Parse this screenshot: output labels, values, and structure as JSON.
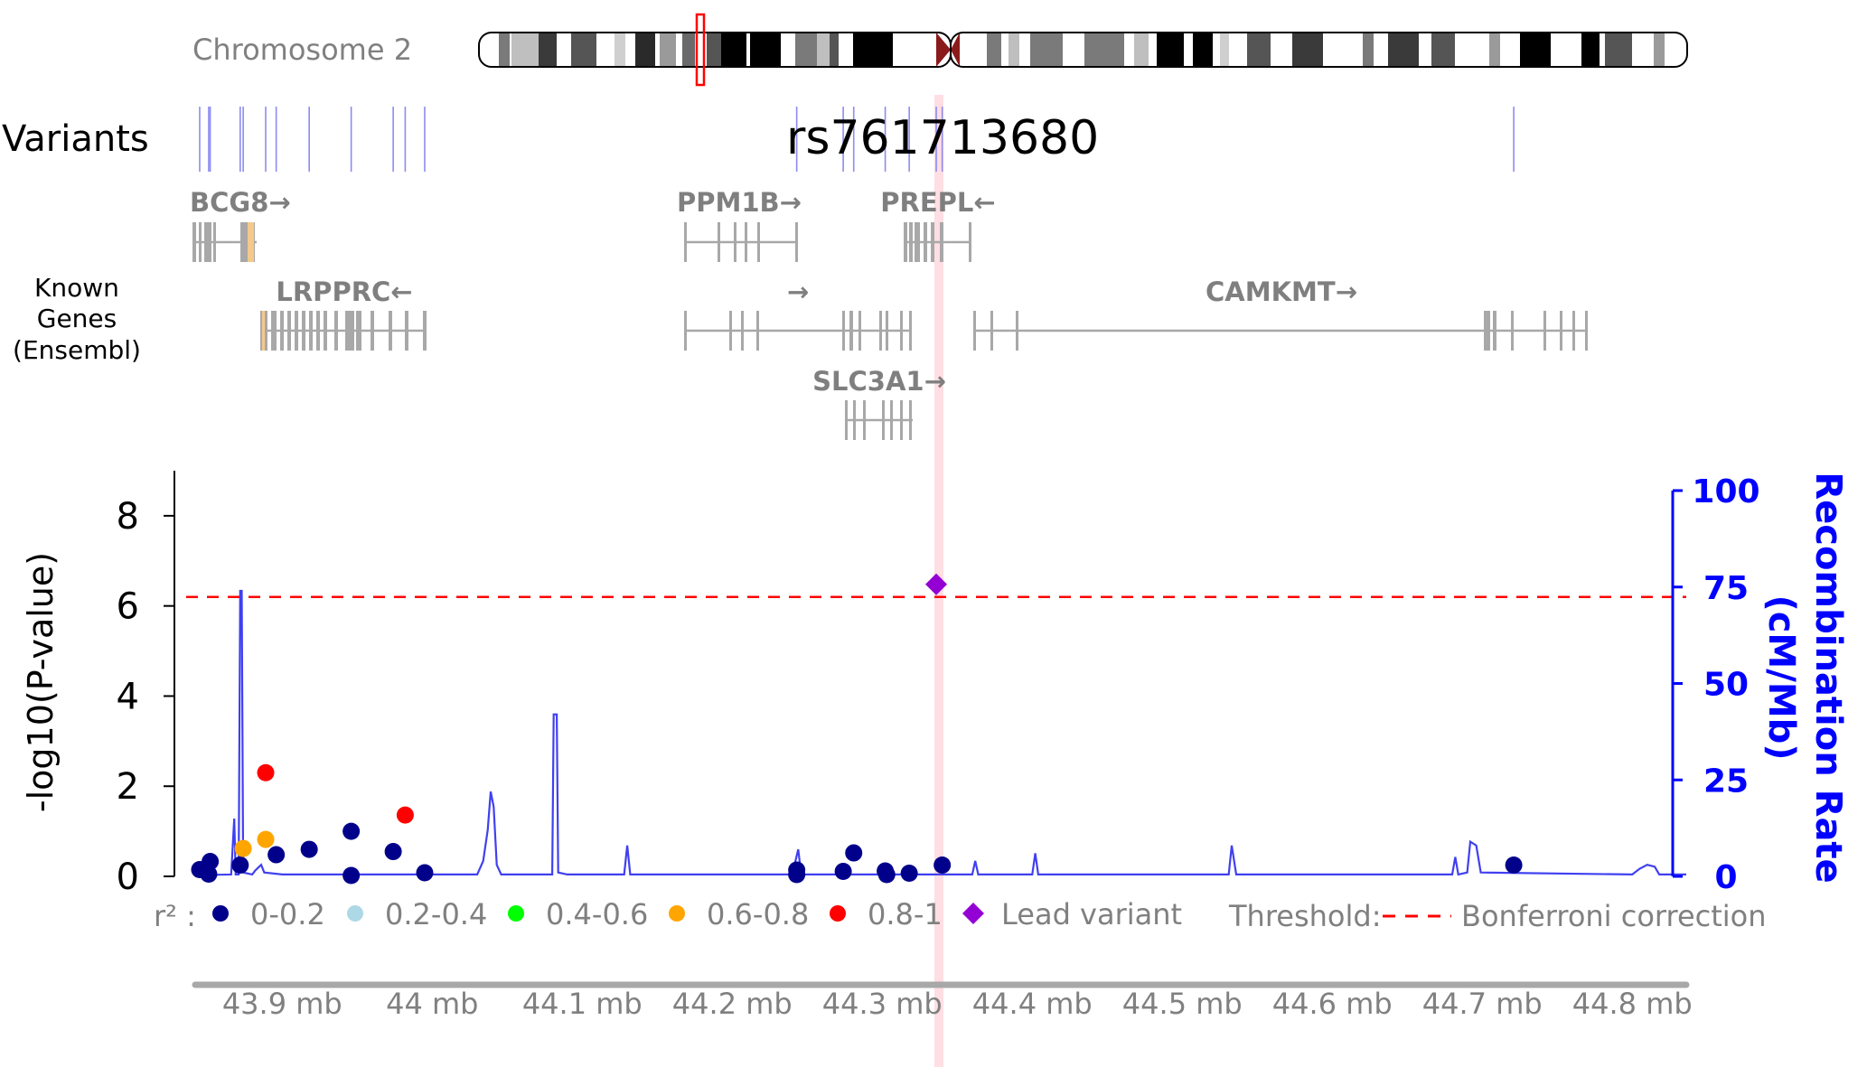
{
  "header": {
    "chromosome_label": "Chromosome 2",
    "variants_label": "Variants",
    "lead_variant_id": "rs761713680",
    "genes_label_lines": [
      "Known",
      "Genes",
      "(Ensembl)"
    ]
  },
  "genes": [
    {
      "label": "BCG8→"
    },
    {
      "label": "PPM1B→"
    },
    {
      "label": "PREPL←"
    },
    {
      "label": "LRPPRC←"
    },
    {
      "label": "→"
    },
    {
      "label": "CAMKMT→"
    },
    {
      "label": "SLC3A1→"
    }
  ],
  "chart_data": {
    "type": "scatter",
    "xlabel": "",
    "ylabel": "-log10(P-value)",
    "y2label_lines": [
      "Recombination Rate",
      "(cM/Mb)"
    ],
    "xlim": [
      43.842,
      44.836
    ],
    "ylim": [
      0,
      9
    ],
    "y2lim": [
      0,
      100
    ],
    "yticks": [
      0,
      2,
      4,
      6,
      8
    ],
    "y2ticks": [
      0,
      25,
      50,
      75,
      100
    ],
    "xticks": [
      {
        "value": 43.9,
        "label": "43.9 mb"
      },
      {
        "value": 44.0,
        "label": "44 mb"
      },
      {
        "value": 44.1,
        "label": "44.1 mb"
      },
      {
        "value": 44.2,
        "label": "44.2 mb"
      },
      {
        "value": 44.3,
        "label": "44.3 mb"
      },
      {
        "value": 44.4,
        "label": "44.4 mb"
      },
      {
        "value": 44.5,
        "label": "44.5 mb"
      },
      {
        "value": 44.6,
        "label": "44.6 mb"
      },
      {
        "value": 44.7,
        "label": "44.7 mb"
      },
      {
        "value": 44.8,
        "label": "44.8 mb"
      }
    ],
    "threshold": 6.2,
    "lead_variant": {
      "x": 44.336,
      "y": 6.48
    },
    "points": [
      {
        "x": 43.845,
        "y": 0.15,
        "ld": "0-0.2"
      },
      {
        "x": 43.851,
        "y": 0.05,
        "ld": "0-0.2"
      },
      {
        "x": 43.852,
        "y": 0.33,
        "ld": "0-0.2"
      },
      {
        "x": 43.872,
        "y": 0.25,
        "ld": "0-0.2"
      },
      {
        "x": 43.874,
        "y": 0.62,
        "ld": "0.6-0.8"
      },
      {
        "x": 43.889,
        "y": 0.82,
        "ld": "0.6-0.8"
      },
      {
        "x": 43.889,
        "y": 2.3,
        "ld": "0.8-1"
      },
      {
        "x": 43.896,
        "y": 0.48,
        "ld": "0-0.2"
      },
      {
        "x": 43.918,
        "y": 0.6,
        "ld": "0-0.2"
      },
      {
        "x": 43.946,
        "y": 1.0,
        "ld": "0-0.2"
      },
      {
        "x": 43.946,
        "y": 0.02,
        "ld": "0-0.2"
      },
      {
        "x": 43.974,
        "y": 0.55,
        "ld": "0-0.2"
      },
      {
        "x": 43.982,
        "y": 1.36,
        "ld": "0.8-1"
      },
      {
        "x": 43.995,
        "y": 0.08,
        "ld": "0-0.2"
      },
      {
        "x": 44.243,
        "y": 0.14,
        "ld": "0-0.2"
      },
      {
        "x": 44.243,
        "y": 0.04,
        "ld": "0-0.2"
      },
      {
        "x": 44.274,
        "y": 0.11,
        "ld": "0-0.2"
      },
      {
        "x": 44.281,
        "y": 0.52,
        "ld": "0-0.2"
      },
      {
        "x": 44.302,
        "y": 0.12,
        "ld": "0-0.2"
      },
      {
        "x": 44.303,
        "y": 0.04,
        "ld": "0-0.2"
      },
      {
        "x": 44.318,
        "y": 0.07,
        "ld": "0-0.2"
      },
      {
        "x": 44.34,
        "y": 0.25,
        "ld": "0-0.2"
      },
      {
        "x": 44.721,
        "y": 0.25,
        "ld": "0-0.2"
      }
    ],
    "recombination": [
      [
        43.842,
        0.3
      ],
      [
        43.866,
        0.5
      ],
      [
        43.868,
        15
      ],
      [
        43.869,
        0.5
      ],
      [
        43.871,
        0.5
      ],
      [
        43.872,
        74
      ],
      [
        43.873,
        74
      ],
      [
        43.874,
        1
      ],
      [
        43.88,
        0.5
      ],
      [
        43.882,
        1.5
      ],
      [
        43.886,
        3
      ],
      [
        43.888,
        1
      ],
      [
        43.9,
        0.5
      ],
      [
        44.03,
        0.5
      ],
      [
        44.034,
        4
      ],
      [
        44.037,
        12
      ],
      [
        44.039,
        22
      ],
      [
        44.041,
        18
      ],
      [
        44.043,
        3
      ],
      [
        44.046,
        0.5
      ],
      [
        44.08,
        0.5
      ],
      [
        44.081,
        42
      ],
      [
        44.083,
        42
      ],
      [
        44.084,
        1
      ],
      [
        44.09,
        0.5
      ],
      [
        44.128,
        0.5
      ],
      [
        44.13,
        8
      ],
      [
        44.132,
        0.5
      ],
      [
        44.24,
        0.5
      ],
      [
        44.244,
        7
      ],
      [
        44.246,
        0.5
      ],
      [
        44.36,
        0.5
      ],
      [
        44.362,
        4
      ],
      [
        44.364,
        0.5
      ],
      [
        44.4,
        0.5
      ],
      [
        44.402,
        6
      ],
      [
        44.404,
        0.5
      ],
      [
        44.531,
        0.5
      ],
      [
        44.533,
        8
      ],
      [
        44.536,
        0.5
      ],
      [
        44.68,
        0.5
      ],
      [
        44.682,
        5
      ],
      [
        44.684,
        0.5
      ],
      [
        44.69,
        1
      ],
      [
        44.692,
        9
      ],
      [
        44.696,
        8
      ],
      [
        44.699,
        1
      ],
      [
        44.8,
        0.5
      ],
      [
        44.805,
        2
      ],
      [
        44.81,
        3
      ],
      [
        44.815,
        2.5
      ],
      [
        44.818,
        0.5
      ],
      [
        44.836,
        0.5
      ]
    ],
    "variant_ticks_x": [
      43.845,
      43.851,
      43.852,
      43.872,
      43.874,
      43.889,
      43.896,
      43.918,
      43.946,
      43.974,
      43.982,
      43.995,
      44.243,
      44.274,
      44.281,
      44.302,
      44.318,
      44.336,
      44.34,
      44.721
    ]
  },
  "legend": {
    "r2_label": "r² :",
    "items": [
      {
        "label": "0-0.2",
        "color": "#00008b",
        "shape": "circle"
      },
      {
        "label": "0.2-0.4",
        "color": "#add8e6",
        "shape": "circle"
      },
      {
        "label": "0.4-0.6",
        "color": "#00ff00",
        "shape": "circle"
      },
      {
        "label": "0.6-0.8",
        "color": "#ffa500",
        "shape": "circle"
      },
      {
        "label": "0.8-1",
        "color": "#ff0000",
        "shape": "circle"
      },
      {
        "label": "Lead variant",
        "color": "#9400d3",
        "shape": "diamond"
      }
    ],
    "threshold_label": "Threshold:",
    "threshold_desc": "Bonferroni correction"
  },
  "colors": {
    "recomb_line": "#4040f0",
    "threshold": "#ff0000",
    "lead_band": "#ffd0d8",
    "gene": "#a8a8a8",
    "right_axis": "#0000ff"
  }
}
